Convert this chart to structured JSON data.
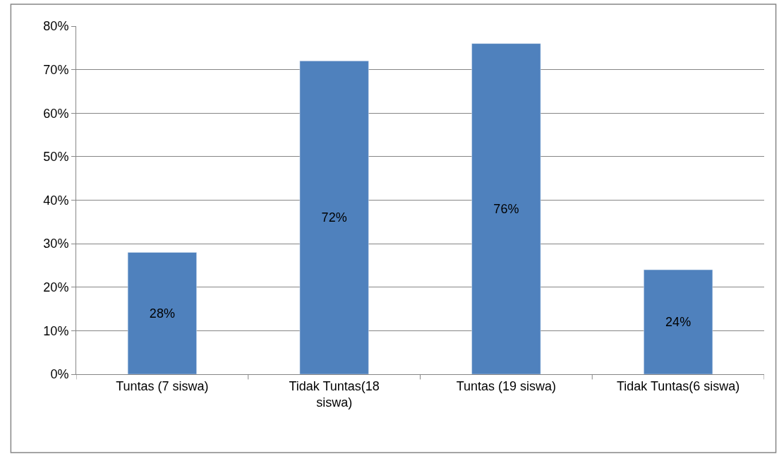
{
  "chart_data": {
    "type": "bar",
    "categories": [
      "Tuntas (7 siswa)",
      "Tidak Tuntas(18 siswa)",
      "Tuntas (19 siswa)",
      "Tidak Tuntas(6 siswa)"
    ],
    "values": [
      28,
      72,
      76,
      24
    ],
    "value_labels": [
      "28%",
      "72%",
      "76%",
      "24%"
    ],
    "color": "#4f81bd",
    "ylim": [
      0,
      80
    ],
    "yticks": [
      {
        "value": 0,
        "label": "0%"
      },
      {
        "value": 10,
        "label": "10%"
      },
      {
        "value": 20,
        "label": "20%"
      },
      {
        "value": 30,
        "label": "30%"
      },
      {
        "value": 40,
        "label": "40%"
      },
      {
        "value": 50,
        "label": "50%"
      },
      {
        "value": 60,
        "label": "60%"
      },
      {
        "value": 70,
        "label": "70%"
      },
      {
        "value": 80,
        "label": "80%"
      }
    ],
    "grid": "y",
    "legend": false
  }
}
